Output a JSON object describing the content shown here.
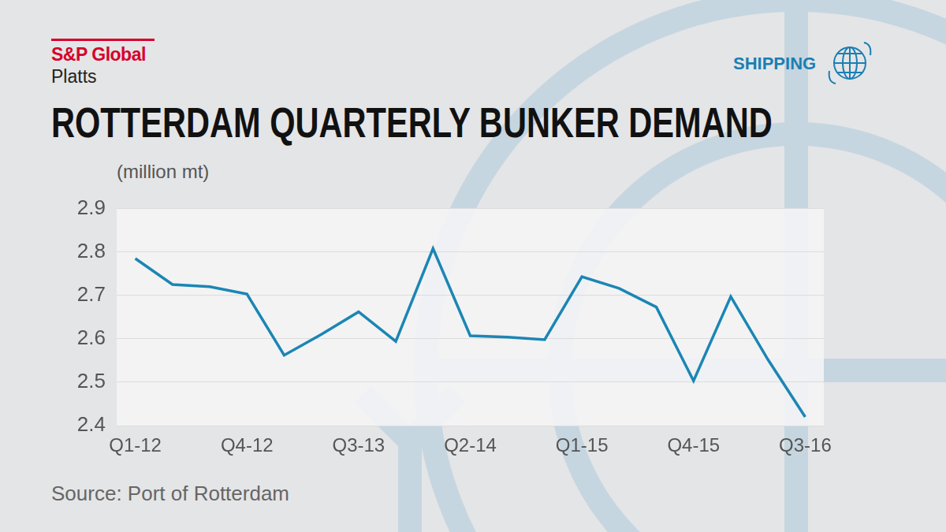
{
  "chart_data": {
    "type": "line",
    "brand": "S&P Global",
    "brand_sub": "Platts",
    "section": "SHIPPING",
    "title": "ROTTERDAM QUARTERLY BUNKER DEMAND",
    "y_label": "(million mt)",
    "source": "Source: Port of Rotterdam",
    "categories": [
      "Q1-12",
      null,
      null,
      "Q4-12",
      null,
      null,
      "Q3-13",
      null,
      null,
      "Q2-14",
      null,
      null,
      "Q1-15",
      null,
      null,
      "Q4-15",
      null,
      null,
      "Q3-16"
    ],
    "values": [
      2.785,
      2.725,
      2.72,
      2.703,
      2.562,
      2.61,
      2.662,
      2.594,
      2.808,
      2.607,
      2.604,
      2.598,
      2.743,
      2.716,
      2.673,
      2.503,
      2.697,
      2.552,
      2.42
    ],
    "color": "#1b86b4",
    "marker": "none",
    "line_style": "solid",
    "ylim": [
      2.4,
      2.9
    ],
    "yticks": [
      2.4,
      2.5,
      2.6,
      2.7,
      2.8,
      2.9
    ],
    "grid": true
  }
}
